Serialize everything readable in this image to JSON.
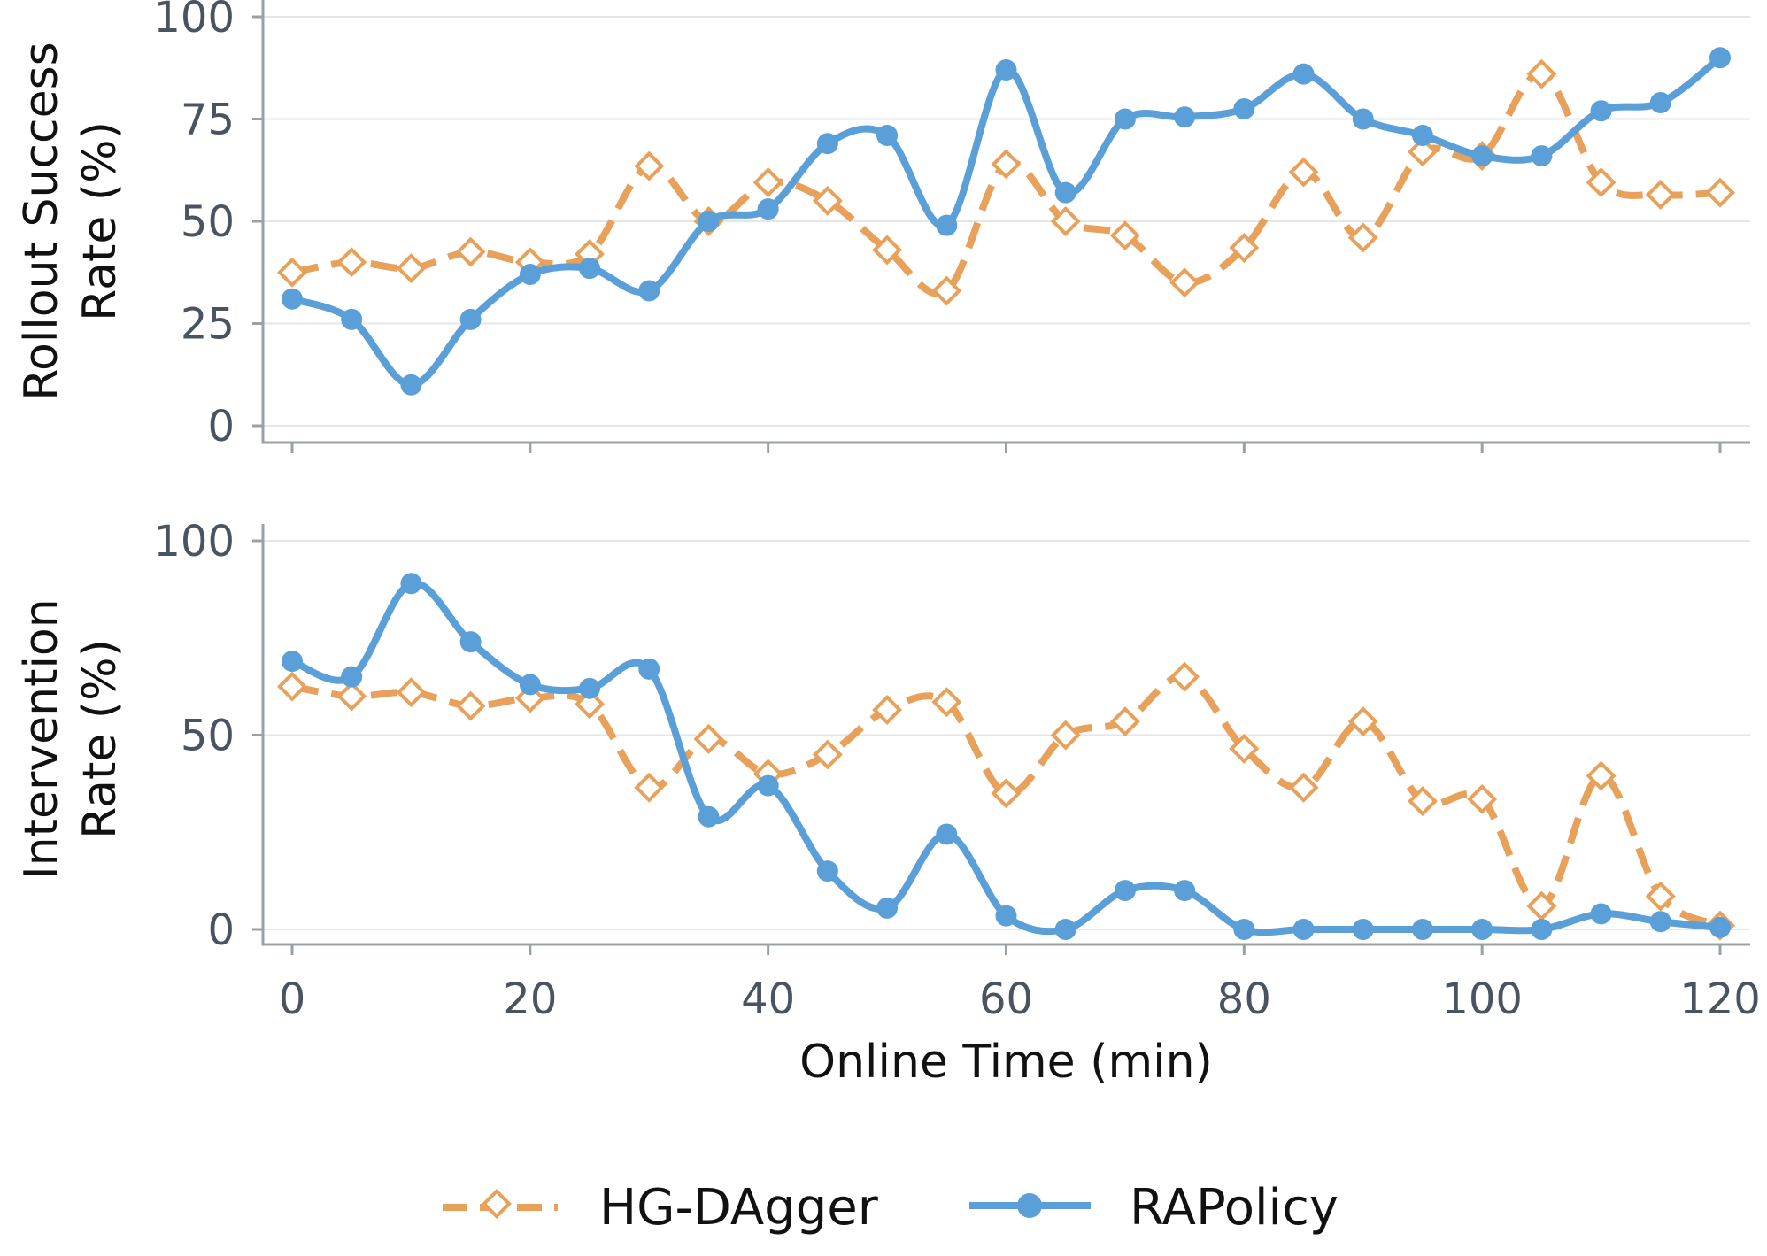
{
  "chart_data": [
    {
      "type": "line",
      "id": "top",
      "ylabel_lines": [
        "Rollout Success",
        "Rate (%)"
      ],
      "xlabel": "",
      "xlim": [
        0,
        120
      ],
      "ylim": [
        0,
        100
      ],
      "yticks": [
        0,
        25,
        50,
        75,
        100
      ],
      "xticks": [
        0,
        20,
        40,
        60,
        80,
        100,
        120
      ],
      "show_xtick_labels": false,
      "grid": "horizontal",
      "x": [
        0,
        5,
        10,
        15,
        20,
        25,
        30,
        35,
        40,
        45,
        50,
        55,
        60,
        65,
        70,
        75,
        80,
        85,
        90,
        95,
        100,
        105,
        110,
        115,
        120
      ],
      "series": [
        {
          "name": "HG-DAgger",
          "color": "#E8A15A",
          "marker": "open-diamond",
          "style": "dashed",
          "values": [
            37.5,
            40,
            38.5,
            42.5,
            40,
            42,
            63.5,
            50,
            59.5,
            55,
            43,
            33,
            64,
            50,
            46.5,
            35,
            43.5,
            62,
            46,
            67,
            66,
            86,
            59.5,
            56.5,
            57
          ]
        },
        {
          "name": "RAPolicy",
          "color": "#5B9FD8",
          "marker": "filled-circle",
          "style": "solid",
          "values": [
            31,
            26,
            10,
            26,
            37,
            38.5,
            33,
            50,
            53,
            69,
            71,
            49,
            87,
            57,
            75,
            75.5,
            77.5,
            86,
            75,
            71,
            66,
            66,
            77,
            79,
            90
          ]
        }
      ]
    },
    {
      "type": "line",
      "id": "bottom",
      "ylabel_lines": [
        "Intervention",
        "Rate (%)"
      ],
      "xlabel": "Online Time (min)",
      "xlim": [
        0,
        120
      ],
      "ylim": [
        0,
        100
      ],
      "yticks": [
        0,
        50,
        100
      ],
      "xticks": [
        0,
        20,
        40,
        60,
        80,
        100,
        120
      ],
      "show_xtick_labels": true,
      "grid": "horizontal",
      "x": [
        0,
        5,
        10,
        15,
        20,
        25,
        30,
        35,
        40,
        45,
        50,
        55,
        60,
        65,
        70,
        75,
        80,
        85,
        90,
        95,
        100,
        105,
        110,
        115,
        120
      ],
      "series": [
        {
          "name": "HG-DAgger",
          "color": "#E8A15A",
          "marker": "open-diamond",
          "style": "dashed",
          "values": [
            62.5,
            60,
            61,
            57.5,
            59.5,
            58,
            36.5,
            49,
            40,
            45,
            56.5,
            58.5,
            35,
            50,
            53.5,
            65,
            46.5,
            36.5,
            53.5,
            33,
            33.5,
            6,
            39.5,
            8.5,
            1
          ]
        },
        {
          "name": "RAPolicy",
          "color": "#5B9FD8",
          "marker": "filled-circle",
          "style": "solid",
          "values": [
            69,
            65,
            89,
            74,
            63,
            62,
            67,
            29,
            37,
            15,
            5.5,
            24.5,
            3.5,
            0,
            10,
            10,
            0,
            0,
            0,
            0,
            0,
            0,
            4,
            2,
            0.5
          ]
        }
      ]
    }
  ],
  "legend": {
    "placement": "bottom-center",
    "items": [
      {
        "label": "HG-DAgger",
        "color": "#E8A15A",
        "marker": "open-diamond",
        "style": "dashed"
      },
      {
        "label": "RAPolicy",
        "color": "#5B9FD8",
        "marker": "filled-circle",
        "style": "solid"
      }
    ]
  }
}
